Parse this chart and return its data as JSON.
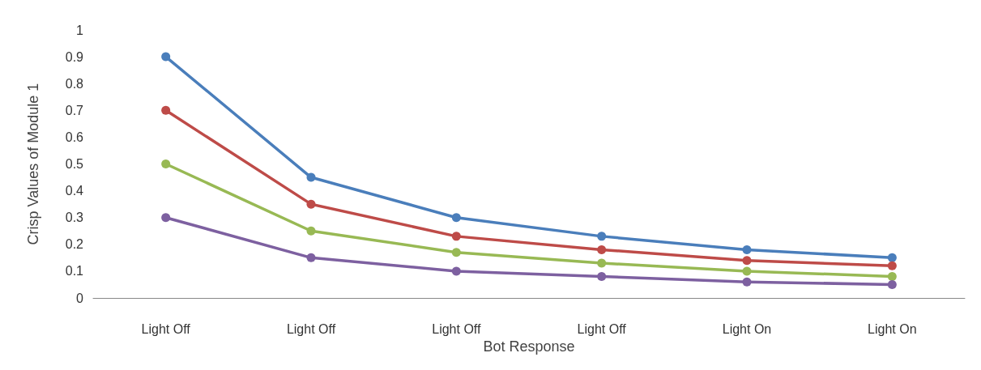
{
  "chart_data": {
    "type": "line",
    "xlabel": "Bot Response",
    "ylabel": "Crisp Values of Module 1",
    "categories": [
      "Light Off",
      "Light Off",
      "Light Off",
      "Light Off",
      "Light On",
      "Light On"
    ],
    "series": [
      {
        "color": "#4a7ebb",
        "values": [
          0.9,
          0.45,
          0.3,
          0.23,
          0.18,
          0.15
        ]
      },
      {
        "color": "#be4b48",
        "values": [
          0.7,
          0.35,
          0.23,
          0.18,
          0.14,
          0.12
        ]
      },
      {
        "color": "#98b954",
        "values": [
          0.5,
          0.25,
          0.17,
          0.13,
          0.1,
          0.08
        ]
      },
      {
        "color": "#7d60a0",
        "values": [
          0.3,
          0.15,
          0.1,
          0.08,
          0.06,
          0.05
        ]
      }
    ],
    "ylim": [
      0,
      1
    ],
    "yticks": [
      0,
      0.1,
      0.2,
      0.3,
      0.4,
      0.5,
      0.6,
      0.7,
      0.8,
      0.9,
      1
    ],
    "grid": false,
    "marker": "circle",
    "line_style": "solid"
  }
}
